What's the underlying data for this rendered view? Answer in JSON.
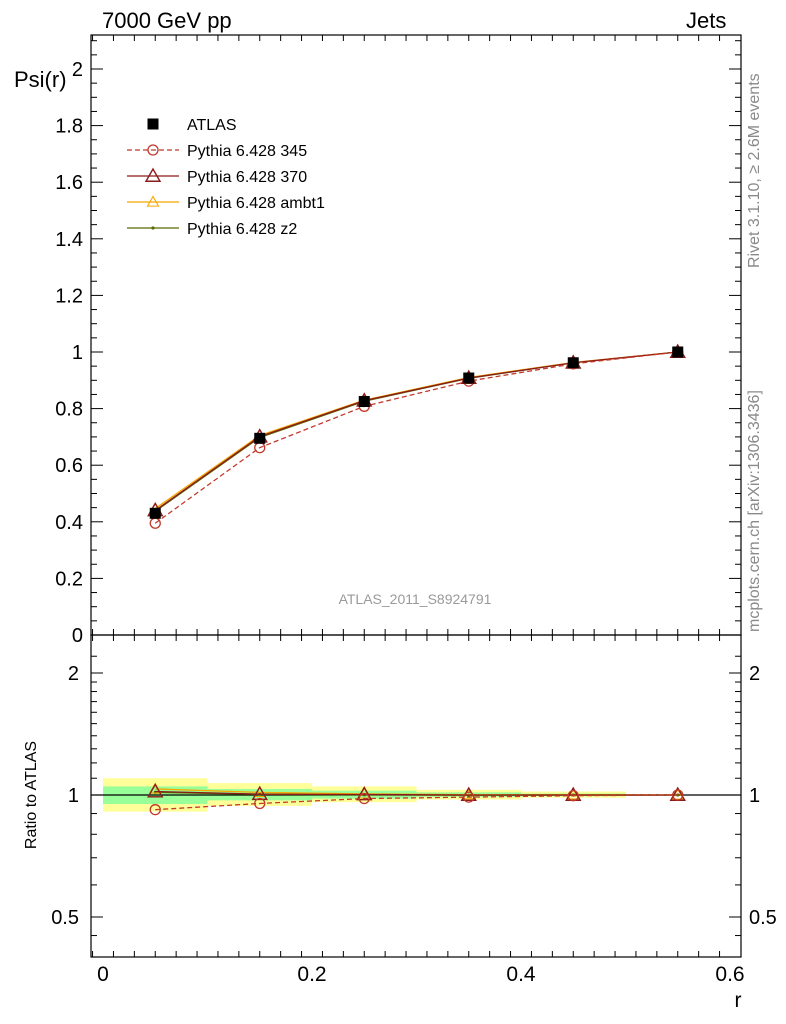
{
  "header": {
    "left": "7000 GeV pp",
    "right": "Jets"
  },
  "side_labels": {
    "rivet": "Rivet 3.1.10, ≥ 2.6M events",
    "mcplots": "mcplots.cern.ch [arXiv:1306.3436]"
  },
  "watermark": "ATLAS_2011_S8924791",
  "chart_data": [
    {
      "type": "line",
      "ylabel": "Psi(r)",
      "xlim": [
        -0.01,
        0.61
      ],
      "ylim": [
        0,
        2.12
      ],
      "yticks": [
        0,
        0.2,
        0.4,
        0.6,
        0.8,
        1,
        1.2,
        1.4,
        1.6,
        1.8,
        2
      ],
      "ytick_labels": [
        "0",
        "0.2",
        "0.4",
        "0.6",
        "0.8",
        "1",
        "1.2",
        "1.4",
        "1.6",
        "1.8",
        "2"
      ],
      "x": [
        0.05,
        0.15,
        0.25,
        0.35,
        0.45,
        0.55
      ],
      "series": [
        {
          "name": "ATLAS",
          "color": "#000000",
          "marker": "square",
          "values": [
            0.43,
            0.695,
            0.825,
            0.908,
            0.962,
            1.0
          ]
        },
        {
          "name": "Pythia 6.428 345",
          "color": "#c0392b",
          "marker": "circle",
          "dashed": true,
          "values": [
            0.395,
            0.662,
            0.808,
            0.897,
            0.958,
            1.0
          ]
        },
        {
          "name": "Pythia 6.428 370",
          "color": "#8b1a1a",
          "marker": "triangle",
          "values": [
            0.44,
            0.701,
            0.828,
            0.908,
            0.962,
            1.0
          ]
        },
        {
          "name": "Pythia 6.428 ambt1",
          "color": "#f5a800",
          "marker": "triangle",
          "values": [
            0.447,
            0.705,
            0.83,
            0.91,
            0.963,
            1.0
          ]
        },
        {
          "name": "Pythia 6.428 z2",
          "color": "#5a6b00",
          "marker": "dot",
          "values": [
            0.437,
            0.698,
            0.826,
            0.907,
            0.962,
            1.0
          ]
        }
      ],
      "legend_position": "top-left"
    },
    {
      "type": "line",
      "ylabel": "Ratio to ATLAS",
      "xlabel": "r",
      "log_y": true,
      "ylim": [
        0.4,
        2.3
      ],
      "xticks": [
        0,
        0.2,
        0.4,
        0.6
      ],
      "xtick_labels": [
        "0",
        "0.2",
        "0.4",
        "0.6"
      ],
      "yticks": [
        0.5,
        1,
        2
      ],
      "ytick_labels": [
        "0.5",
        "1",
        "2"
      ],
      "x": [
        0.05,
        0.15,
        0.25,
        0.35,
        0.45,
        0.55
      ],
      "bands": {
        "bin_edges": [
          0.0,
          0.1,
          0.2,
          0.3,
          0.4,
          0.5
        ],
        "outer": [
          [
            0.91,
            1.1
          ],
          [
            0.94,
            1.07
          ],
          [
            0.96,
            1.05
          ],
          [
            0.975,
            1.03
          ],
          [
            0.985,
            1.02
          ]
        ],
        "inner": [
          [
            0.95,
            1.05
          ],
          [
            0.97,
            1.035
          ],
          [
            0.98,
            1.025
          ],
          [
            0.99,
            1.015
          ],
          [
            0.995,
            1.008
          ]
        ],
        "outer_color": "#ffff99",
        "inner_color": "#99ff99"
      },
      "series": [
        {
          "name": "Pythia 6.428 345",
          "color": "#c0392b",
          "marker": "circle",
          "dashed": true,
          "values": [
            0.92,
            0.953,
            0.98,
            0.988,
            0.996,
            1.0
          ]
        },
        {
          "name": "Pythia 6.428 370",
          "color": "#8b1a1a",
          "marker": "triangle",
          "values": [
            1.02,
            1.005,
            1.003,
            1.0,
            1.0,
            1.0
          ]
        },
        {
          "name": "Pythia 6.428 ambt1",
          "color": "#f5a800",
          "marker": "triangle",
          "values": [
            1.035,
            1.015,
            1.006,
            1.002,
            1.001,
            1.0
          ]
        },
        {
          "name": "Pythia 6.428 z2",
          "color": "#5a6b00",
          "marker": "dot",
          "values": [
            1.015,
            1.004,
            1.001,
            0.999,
            1.0,
            1.0
          ]
        }
      ]
    }
  ]
}
